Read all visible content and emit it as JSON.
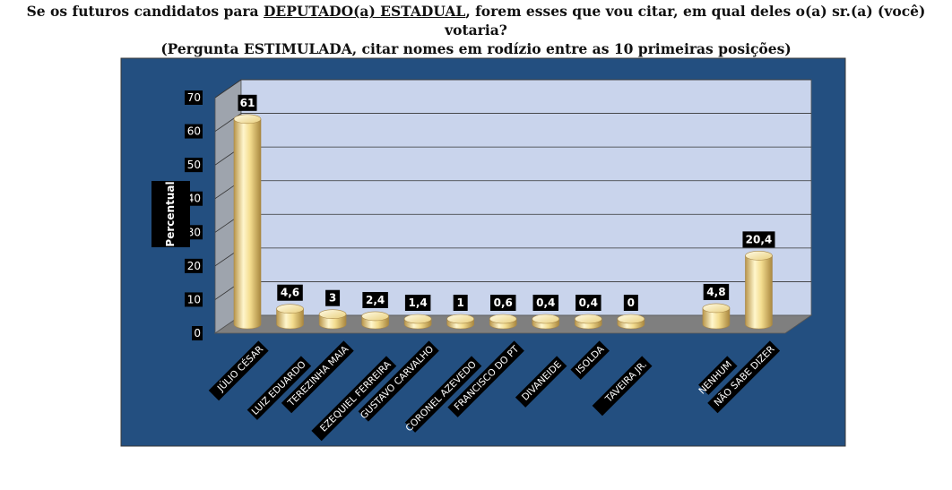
{
  "question": {
    "line1_before": "Se os futuros candidatos para ",
    "line1_underlined": "DEPUTADO(a) ESTADUAL",
    "line1_after": ", forem esses que vou citar, em qual deles o(a) sr.(a) (você) votaria?",
    "line2": "(Pergunta ESTIMULADA, citar nomes em rodízio entre as 10 primeiras posições)"
  },
  "colors": {
    "frame_bg": "#234f80",
    "plot_back": "#c9d4ec",
    "plot_floor": "#7f7f7f",
    "plot_side": "#9ea4ad",
    "bar": "#f5e29a",
    "label_bg": "#000000",
    "label_text": "#ffffff"
  },
  "chart_data": {
    "type": "bar",
    "ylabel": "Percentual",
    "ylim": [
      0,
      70
    ],
    "yticks": [
      0,
      10,
      20,
      30,
      40,
      50,
      60,
      70
    ],
    "grid": true,
    "style": "3d-cylinder",
    "categories": [
      "JÚLIO CÉSAR",
      "LUIZ EDUARDO",
      "TEREZINHA MAIA",
      "EZEQUIEL FERREIRA",
      "GUSTAVO CARVALHO",
      "CORONEL AZEVEDO",
      "FRANCISCO DO PT",
      "DIVANEIDE",
      "ISOLDA",
      "TAVEIRA JR.",
      "",
      "NENHUM",
      "NÃO SABE DIZER"
    ],
    "values": [
      61,
      4.6,
      3,
      2.4,
      1.4,
      1,
      0.6,
      0.4,
      0.4,
      0,
      null,
      4.8,
      20.4
    ],
    "value_labels": [
      "61",
      "4,6",
      "3",
      "2,4",
      "1,4",
      "1",
      "0,6",
      "0,4",
      "0,4",
      "0",
      "",
      "4,8",
      "20,4"
    ]
  }
}
